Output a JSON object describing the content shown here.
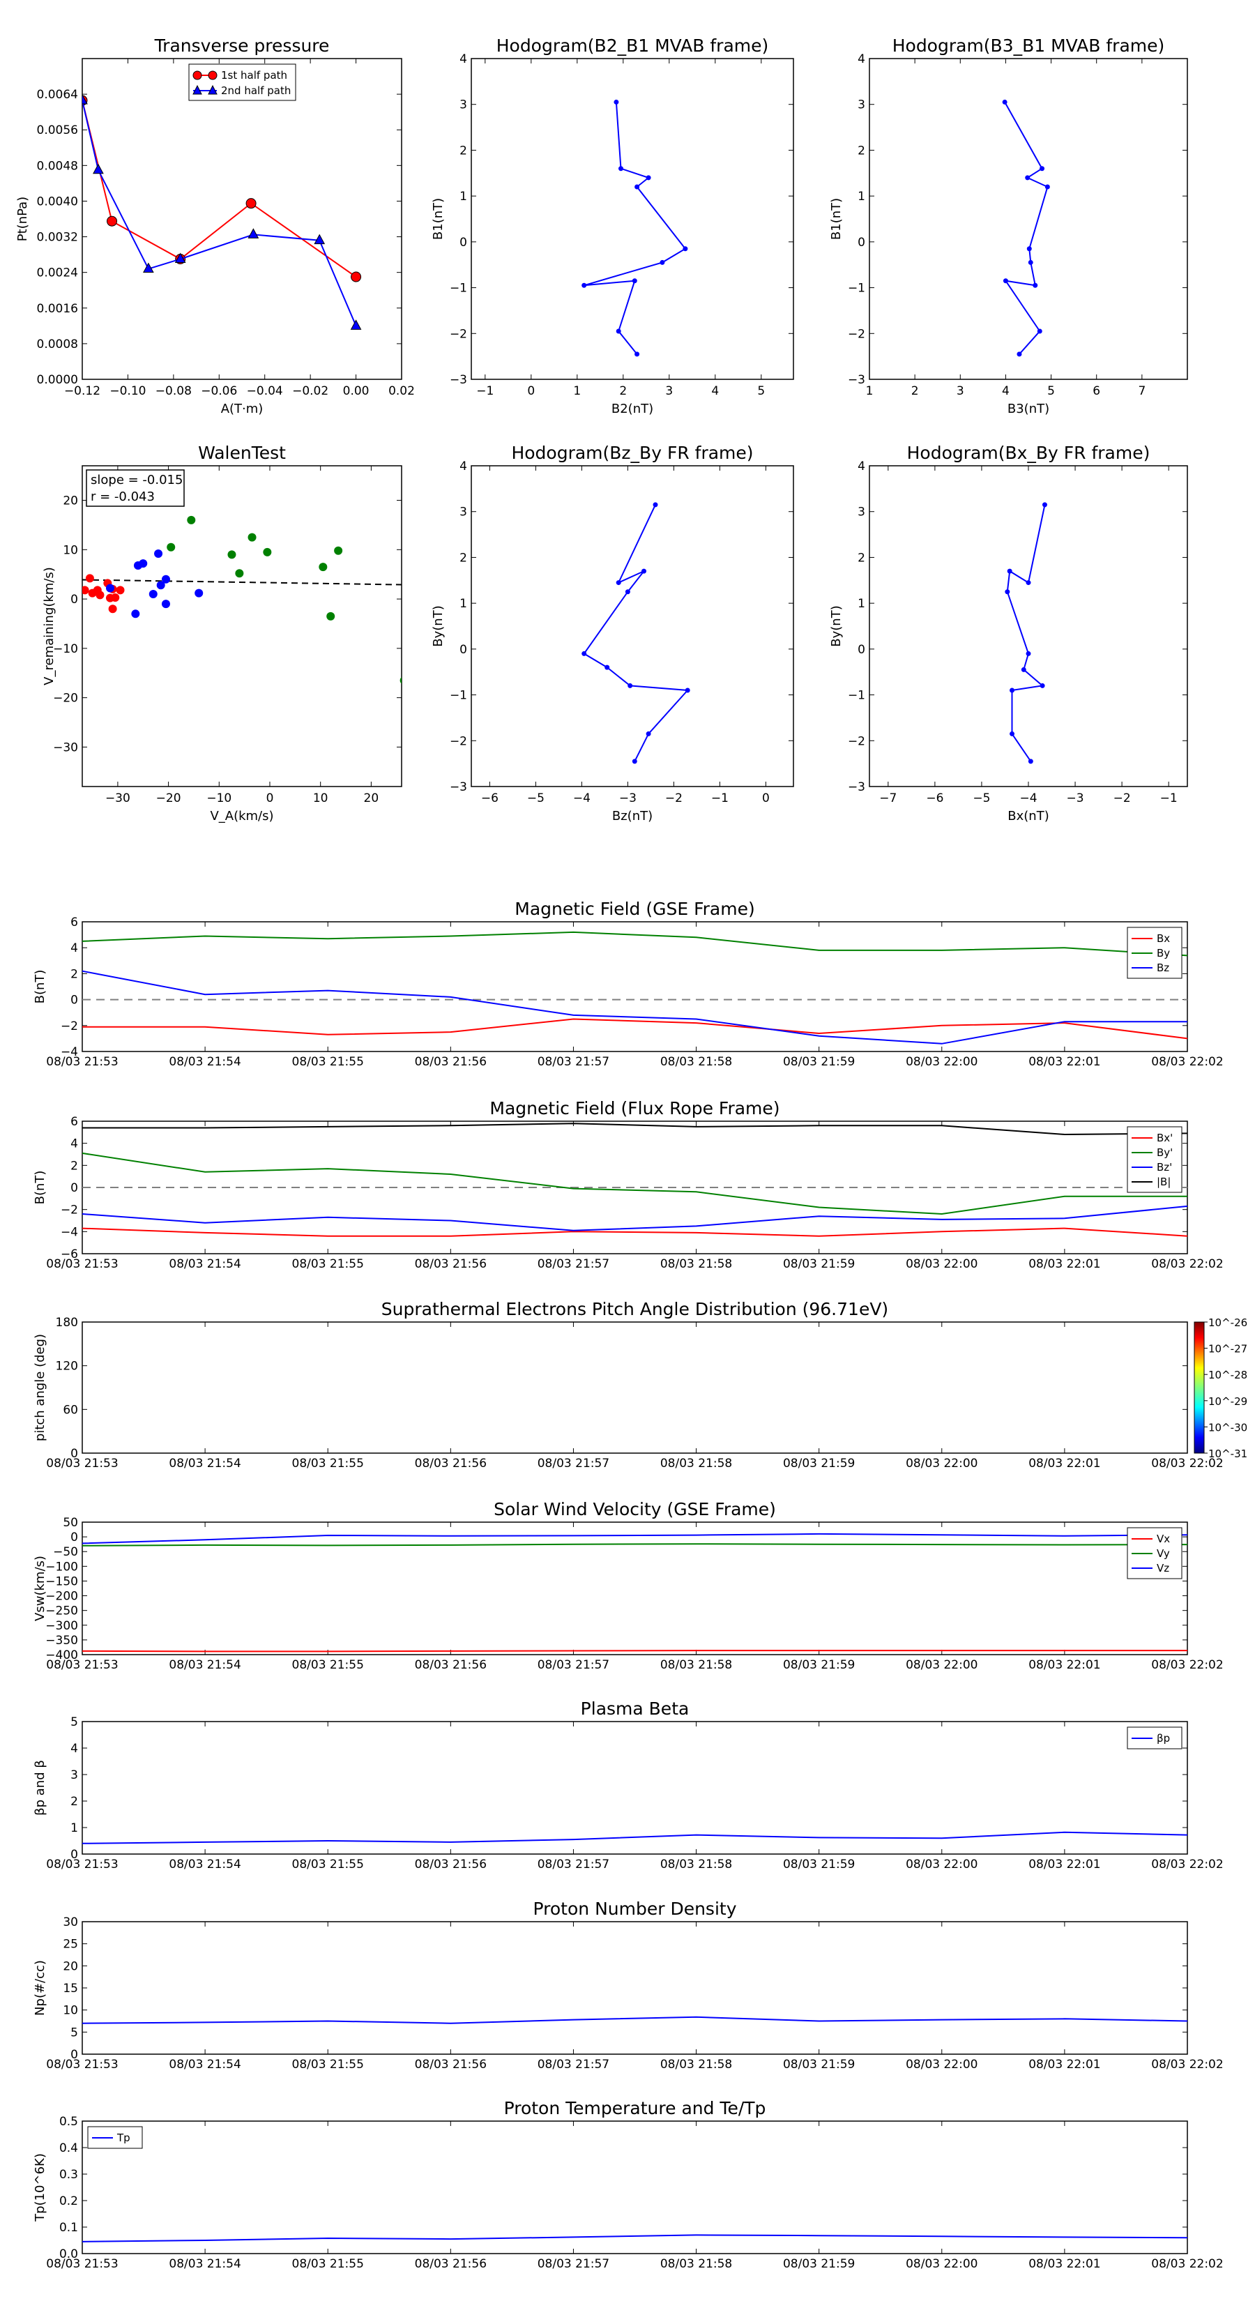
{
  "time_ticks": [
    "08/03 21:53",
    "08/03 21:54",
    "08/03 21:55",
    "08/03 21:56",
    "08/03 21:57",
    "08/03 21:58",
    "08/03 21:59",
    "08/03 22:00",
    "08/03 22:01",
    "08/03 22:02"
  ],
  "colors": {
    "red": "#ff0000",
    "green": "#008000",
    "blue": "#0000ff",
    "black": "#000000",
    "grey": "#808080"
  },
  "chart_data": [
    {
      "id": "pt",
      "type": "line",
      "title": "Transverse pressure",
      "xlabel": "A(T·m)",
      "ylabel": "Pt(nPa)",
      "xlim": [
        -0.12,
        0.02
      ],
      "ylim": [
        0,
        0.0072
      ],
      "xticks": [
        "−0.12",
        "−0.10",
        "−0.08",
        "−0.06",
        "−0.04",
        "−0.02",
        "0.00",
        "0.02"
      ],
      "yticks": [
        "0.0000",
        "0.0008",
        "0.0016",
        "0.0024",
        "0.0032",
        "0.0040",
        "0.0048",
        "0.0056",
        "0.0064"
      ],
      "legend_position": "top-center",
      "series": [
        {
          "name": "1st half path",
          "marker": "circle",
          "color": "#ff0000",
          "x": [
            -0.12,
            -0.107,
            -0.077,
            -0.046,
            0.0
          ],
          "y": [
            0.00626,
            0.00355,
            0.0027,
            0.00395,
            0.0023
          ]
        },
        {
          "name": "2nd half path",
          "marker": "triangle",
          "color": "#0000ff",
          "x": [
            -0.12,
            -0.113,
            -0.091,
            -0.077,
            -0.045,
            -0.016,
            0.0
          ],
          "y": [
            0.00626,
            0.0047,
            0.00248,
            0.0027,
            0.00325,
            0.00312,
            0.0012
          ]
        }
      ]
    },
    {
      "id": "hodo1",
      "type": "line",
      "title": "Hodogram(B2_B1 MVAB frame)",
      "xlabel": "B2(nT)",
      "ylabel": "B1(nT)",
      "xlim": [
        -1.3,
        5.7
      ],
      "ylim": [
        -3,
        4
      ],
      "xticks": [
        "−1",
        "0",
        "1",
        "2",
        "3",
        "4",
        "5"
      ],
      "yticks": [
        "−3",
        "−2",
        "−1",
        "0",
        "1",
        "2",
        "3",
        "4"
      ],
      "series": [
        {
          "color": "#0000ff",
          "x": [
            1.85,
            1.95,
            2.55,
            2.3,
            3.35,
            2.85,
            1.15,
            2.25,
            1.9,
            2.3
          ],
          "y": [
            3.05,
            1.6,
            1.4,
            1.2,
            -0.15,
            -0.45,
            -0.95,
            -0.85,
            -1.95,
            -2.45
          ]
        }
      ]
    },
    {
      "id": "hodo2",
      "type": "line",
      "title": "Hodogram(B3_B1 MVAB frame)",
      "xlabel": "B3(nT)",
      "ylabel": "B1(nT)",
      "xlim": [
        1,
        8
      ],
      "ylim": [
        -3,
        4
      ],
      "xticks": [
        "1",
        "2",
        "3",
        "4",
        "5",
        "6",
        "7"
      ],
      "yticks": [
        "−3",
        "−2",
        "−1",
        "0",
        "1",
        "2",
        "3",
        "4"
      ],
      "series": [
        {
          "color": "#0000ff",
          "x": [
            3.98,
            4.8,
            4.48,
            4.92,
            4.52,
            4.55,
            4.65,
            4.0,
            4.75,
            4.3
          ],
          "y": [
            3.05,
            1.6,
            1.4,
            1.2,
            -0.15,
            -0.45,
            -0.95,
            -0.85,
            -1.95,
            -2.45
          ]
        }
      ]
    },
    {
      "id": "walen",
      "type": "scatter",
      "title": "WalenTest",
      "xlabel": "V_A(km/s)",
      "ylabel": "V_remaining(km/s)",
      "xlim": [
        -37,
        26
      ],
      "ylim": [
        -38,
        27
      ],
      "xticks": [
        "−30",
        "−20",
        "−10",
        "0",
        "10",
        "20"
      ],
      "yticks": [
        "−30",
        "−20",
        "−10",
        "0",
        "10",
        "20"
      ],
      "annotations": [
        "slope = -0.015",
        "r = -0.043"
      ],
      "fit": {
        "slope": -0.015,
        "x": [
          -37,
          26
        ],
        "y": [
          3.9,
          2.9
        ]
      },
      "series": [
        {
          "color": "#ff0000",
          "x": [
            -36.5,
            -35.5,
            -35,
            -34,
            -33.5,
            -32,
            -31.5,
            -31,
            -31,
            -30.5,
            -29.5
          ],
          "y": [
            1.8,
            4.2,
            1.2,
            1.8,
            0.8,
            3.2,
            0.2,
            -2.0,
            2.0,
            0.3,
            1.8
          ]
        },
        {
          "color": "#0000ff",
          "x": [
            -31.5,
            -26.5,
            -26,
            -25,
            -23,
            -22,
            -21.5,
            -20.5,
            -20.5,
            -14
          ],
          "y": [
            2.2,
            -3.0,
            6.8,
            7.2,
            1.0,
            9.2,
            2.8,
            -1.0,
            4.0,
            1.2
          ]
        },
        {
          "color": "#008000",
          "x": [
            -19.5,
            -15.5,
            -7.5,
            -6,
            -3.5,
            -0.5,
            10.5,
            12,
            13.5,
            26.5
          ],
          "y": [
            10.5,
            16.0,
            9.0,
            5.2,
            12.5,
            9.5,
            6.5,
            -3.5,
            9.8,
            -16.5
          ]
        }
      ]
    },
    {
      "id": "hodo3",
      "type": "line",
      "title": "Hodogram(Bz_By FR frame)",
      "xlabel": "Bz(nT)",
      "ylabel": "By(nT)",
      "xlim": [
        -6.4,
        0.6
      ],
      "ylim": [
        -3,
        4
      ],
      "xticks": [
        "−6",
        "−5",
        "−4",
        "−3",
        "−2",
        "−1",
        "0"
      ],
      "yticks": [
        "−3",
        "−2",
        "−1",
        "0",
        "1",
        "2",
        "3",
        "4"
      ],
      "series": [
        {
          "color": "#0000ff",
          "x": [
            -2.4,
            -3.2,
            -2.65,
            -3.0,
            -3.95,
            -3.45,
            -2.95,
            -1.7,
            -2.55,
            -2.85
          ],
          "y": [
            3.15,
            1.45,
            1.7,
            1.25,
            -0.1,
            -0.4,
            -0.8,
            -0.9,
            -1.85,
            -2.45
          ]
        }
      ]
    },
    {
      "id": "hodo4",
      "type": "line",
      "title": "Hodogram(Bx_By FR frame)",
      "xlabel": "Bx(nT)",
      "ylabel": "By(nT)",
      "xlim": [
        -7.4,
        -0.6
      ],
      "ylim": [
        -3,
        4
      ],
      "xticks": [
        "−7",
        "−6",
        "−5",
        "−4",
        "−3",
        "−2",
        "−1"
      ],
      "yticks": [
        "−3",
        "−2",
        "−1",
        "0",
        "1",
        "2",
        "3",
        "4"
      ],
      "series": [
        {
          "color": "#0000ff",
          "x": [
            -3.65,
            -4.0,
            -4.4,
            -4.45,
            -4.0,
            -4.1,
            -3.7,
            -4.35,
            -4.35,
            -3.95
          ],
          "y": [
            3.15,
            1.45,
            1.7,
            1.25,
            -0.1,
            -0.45,
            -0.8,
            -0.9,
            -1.85,
            -2.45
          ]
        }
      ]
    },
    {
      "id": "bgse",
      "type": "line",
      "title": "Magnetic Field (GSE Frame)",
      "ylabel": "B(nT)",
      "ylim": [
        -4,
        6
      ],
      "yticks": [
        "−4",
        "−2",
        "0",
        "2",
        "4",
        "6"
      ],
      "zero_line": true,
      "legend_position": "top-right",
      "x_minutes": [
        0,
        1,
        2,
        3,
        4,
        5,
        6,
        7,
        8,
        9
      ],
      "series": [
        {
          "name": "Bx",
          "color": "#ff0000",
          "values": [
            -2.1,
            -2.1,
            -2.7,
            -2.5,
            -1.5,
            -1.8,
            -2.6,
            -2.0,
            -1.8,
            -3.0
          ]
        },
        {
          "name": "By",
          "color": "#008000",
          "values": [
            4.5,
            4.9,
            4.7,
            4.9,
            5.2,
            4.8,
            3.8,
            3.8,
            4.0,
            3.4
          ]
        },
        {
          "name": "Bz",
          "color": "#0000ff",
          "values": [
            2.2,
            0.4,
            0.7,
            0.2,
            -1.2,
            -1.5,
            -2.8,
            -3.4,
            -1.7,
            -1.7
          ]
        }
      ]
    },
    {
      "id": "bfr",
      "type": "line",
      "title": "Magnetic Field (Flux Rope Frame)",
      "ylabel": "B(nT)",
      "ylim": [
        -6,
        6
      ],
      "yticks": [
        "−6",
        "−4",
        "−2",
        "0",
        "2",
        "4",
        "6"
      ],
      "zero_line": true,
      "legend_position": "top-right",
      "x_minutes": [
        0,
        1,
        2,
        3,
        4,
        5,
        6,
        7,
        8,
        9
      ],
      "series": [
        {
          "name": "Bx'",
          "color": "#ff0000",
          "values": [
            -3.7,
            -4.1,
            -4.4,
            -4.4,
            -4.0,
            -4.1,
            -4.4,
            -4.0,
            -3.7,
            -4.4
          ]
        },
        {
          "name": "By'",
          "color": "#008000",
          "values": [
            3.1,
            1.4,
            1.7,
            1.2,
            -0.1,
            -0.4,
            -1.8,
            -2.4,
            -0.8,
            -0.8
          ]
        },
        {
          "name": "Bz'",
          "color": "#0000ff",
          "values": [
            -2.4,
            -3.2,
            -2.7,
            -3.0,
            -3.9,
            -3.5,
            -2.6,
            -2.9,
            -2.8,
            -1.7
          ]
        },
        {
          "name": "|B|",
          "color": "#000000",
          "values": [
            5.4,
            5.4,
            5.5,
            5.6,
            5.8,
            5.5,
            5.6,
            5.6,
            4.8,
            4.9
          ]
        }
      ]
    },
    {
      "id": "pad",
      "type": "heatmap",
      "title": "Suprathermal Electrons Pitch Angle Distribution (96.71eV)",
      "ylabel": "pitch angle (deg)",
      "ylim": [
        0,
        180
      ],
      "yticks": [
        "0",
        "60",
        "120",
        "180"
      ],
      "colorbar_ticks": [
        "10^-26",
        "10^-27",
        "10^-28",
        "10^-29",
        "10^-30",
        "10^-31"
      ],
      "values": []
    },
    {
      "id": "vsw",
      "type": "line",
      "title": "Solar Wind Velocity (GSE Frame)",
      "ylabel": "Vsw(km/s)",
      "ylim": [
        -400,
        50
      ],
      "yticks": [
        "−400",
        "−350",
        "−300",
        "−250",
        "−200",
        "−150",
        "−100",
        "−50",
        "0",
        "50"
      ],
      "legend_position": "top-right",
      "x_minutes": [
        0,
        1,
        2,
        3,
        4,
        5,
        6,
        7,
        8,
        9
      ],
      "series": [
        {
          "name": "Vx",
          "color": "#ff0000",
          "values": [
            -388,
            -389,
            -389,
            -388,
            -387,
            -386,
            -386,
            -386,
            -386,
            -386
          ]
        },
        {
          "name": "Vy",
          "color": "#008000",
          "values": [
            -30,
            -28,
            -29,
            -28,
            -25,
            -24,
            -25,
            -26,
            -27,
            -26
          ]
        },
        {
          "name": "Vz",
          "color": "#0000ff",
          "values": [
            -22,
            -10,
            5,
            3,
            4,
            6,
            10,
            7,
            3,
            7
          ]
        }
      ]
    },
    {
      "id": "beta",
      "type": "line",
      "title": "Plasma Beta",
      "ylabel": "βp and β",
      "ylim": [
        0,
        5
      ],
      "yticks": [
        "0",
        "1",
        "2",
        "3",
        "4",
        "5"
      ],
      "legend_position": "top-right",
      "x_minutes": [
        0,
        1,
        2,
        3,
        4,
        5,
        6,
        7,
        8,
        9
      ],
      "series": [
        {
          "name": "βp",
          "color": "#0000ff",
          "values": [
            0.4,
            0.45,
            0.5,
            0.45,
            0.55,
            0.72,
            0.62,
            0.6,
            0.82,
            0.72
          ]
        }
      ]
    },
    {
      "id": "np",
      "type": "line",
      "title": "Proton Number Density",
      "ylabel": "Np(#/cc)",
      "ylim": [
        0,
        30
      ],
      "yticks": [
        "0",
        "5",
        "10",
        "15",
        "20",
        "25",
        "30"
      ],
      "x_minutes": [
        0,
        1,
        2,
        3,
        4,
        5,
        6,
        7,
        8,
        9
      ],
      "series": [
        {
          "color": "#0000ff",
          "values": [
            7.0,
            7.2,
            7.5,
            7.0,
            7.8,
            8.4,
            7.5,
            7.8,
            8.0,
            7.5
          ]
        }
      ]
    },
    {
      "id": "tp",
      "type": "line",
      "title": "Proton Temperature and Te/Tp",
      "ylabel": "Tp(10^6K)",
      "ylim": [
        0,
        0.5
      ],
      "yticks": [
        "0.0",
        "0.1",
        "0.2",
        "0.3",
        "0.4",
        "0.5"
      ],
      "legend_position": "top-left",
      "x_minutes": [
        0,
        1,
        2,
        3,
        4,
        5,
        6,
        7,
        8,
        9
      ],
      "series": [
        {
          "name": "Tp",
          "color": "#0000ff",
          "values": [
            0.045,
            0.05,
            0.058,
            0.055,
            0.062,
            0.07,
            0.068,
            0.065,
            0.062,
            0.06
          ]
        }
      ]
    }
  ]
}
